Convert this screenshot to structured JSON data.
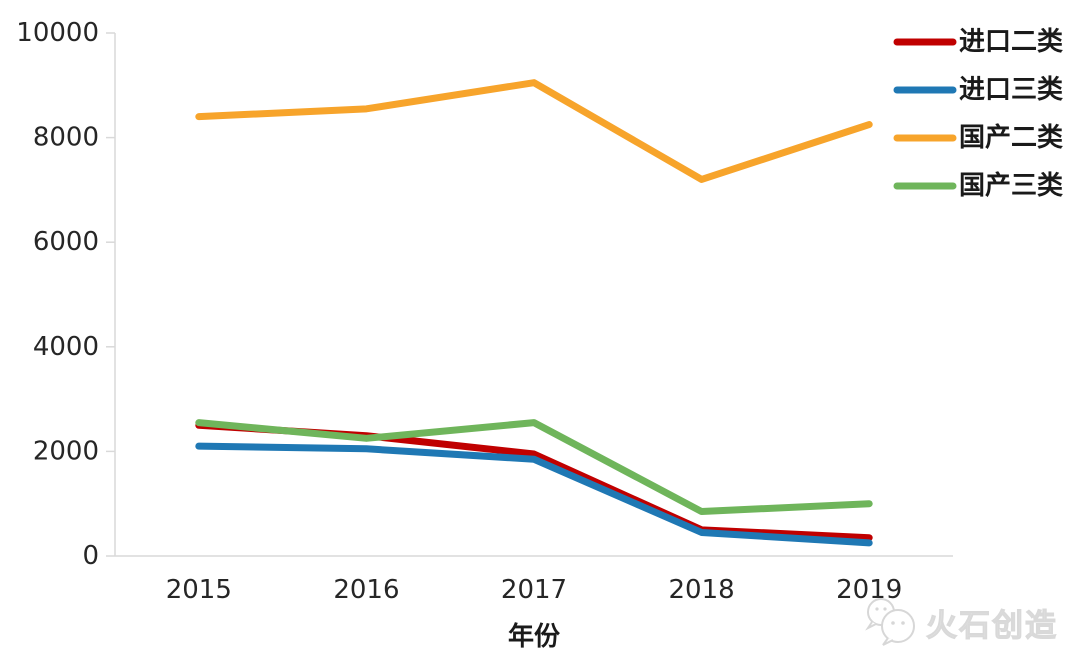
{
  "chart_data": {
    "type": "line",
    "categories": [
      "2015",
      "2016",
      "2017",
      "2018",
      "2019"
    ],
    "series": [
      {
        "name": "进口二类",
        "color": "#C00000",
        "values": [
          2500,
          2300,
          1950,
          500,
          350
        ]
      },
      {
        "name": "进口三类",
        "color": "#1F78B4",
        "values": [
          2100,
          2050,
          1850,
          450,
          250
        ]
      },
      {
        "name": "国产二类",
        "color": "#F7A42B",
        "values": [
          8400,
          8550,
          9050,
          7200,
          8250
        ]
      },
      {
        "name": "国产三类",
        "color": "#6FB55B",
        "values": [
          2550,
          2250,
          2550,
          850,
          1000
        ]
      }
    ],
    "xlabel": "年份",
    "ylabel": "",
    "ylim": [
      0,
      10000
    ],
    "yticks": [
      "0",
      "2000",
      "4000",
      "6000",
      "8000",
      "10000"
    ],
    "grid": false,
    "legend_position": "top-right",
    "axis_color": "#D9D9D9",
    "text_color": "#262626",
    "line_width": 7
  },
  "watermark": {
    "text": "火石创造",
    "icon": "chat-bubbles-logo"
  }
}
